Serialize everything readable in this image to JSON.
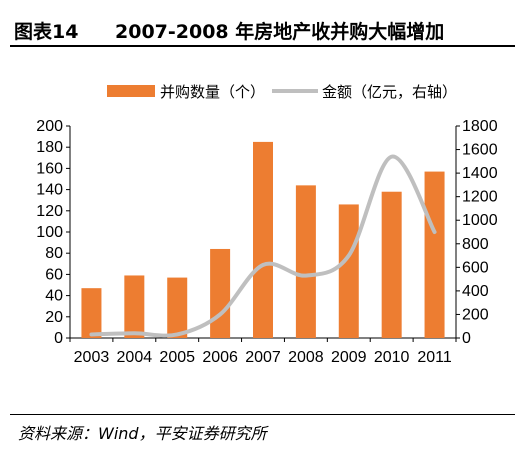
{
  "figure": {
    "label": "图表14",
    "title": "2007-2008 年房地产收并购大幅增加",
    "source": "资料来源：Wind，平安证券研究所"
  },
  "colors": {
    "bar": "#ED7D31",
    "line": "#BFBFBF"
  },
  "chart_data": {
    "type": "bar",
    "categories": [
      "2003",
      "2004",
      "2005",
      "2006",
      "2007",
      "2008",
      "2009",
      "2010",
      "2011"
    ],
    "series": [
      {
        "name": "并购数量（个）",
        "type": "bar",
        "axis": "left",
        "values": [
          47,
          59,
          57,
          84,
          185,
          144,
          126,
          138,
          157
        ]
      },
      {
        "name": "金额（亿元，右轴）",
        "type": "line",
        "axis": "right",
        "smooth": true,
        "values": [
          30,
          40,
          30,
          200,
          620,
          530,
          700,
          1540,
          900
        ]
      }
    ],
    "y_left": {
      "min": 0,
      "max": 200,
      "ticks": [
        0,
        20,
        40,
        60,
        80,
        100,
        120,
        140,
        160,
        180,
        200
      ]
    },
    "y_right": {
      "min": 0,
      "max": 1800,
      "ticks": [
        0,
        200,
        400,
        600,
        800,
        1000,
        1200,
        1400,
        1600,
        1800
      ]
    },
    "legend_position": "top",
    "grid": false
  }
}
